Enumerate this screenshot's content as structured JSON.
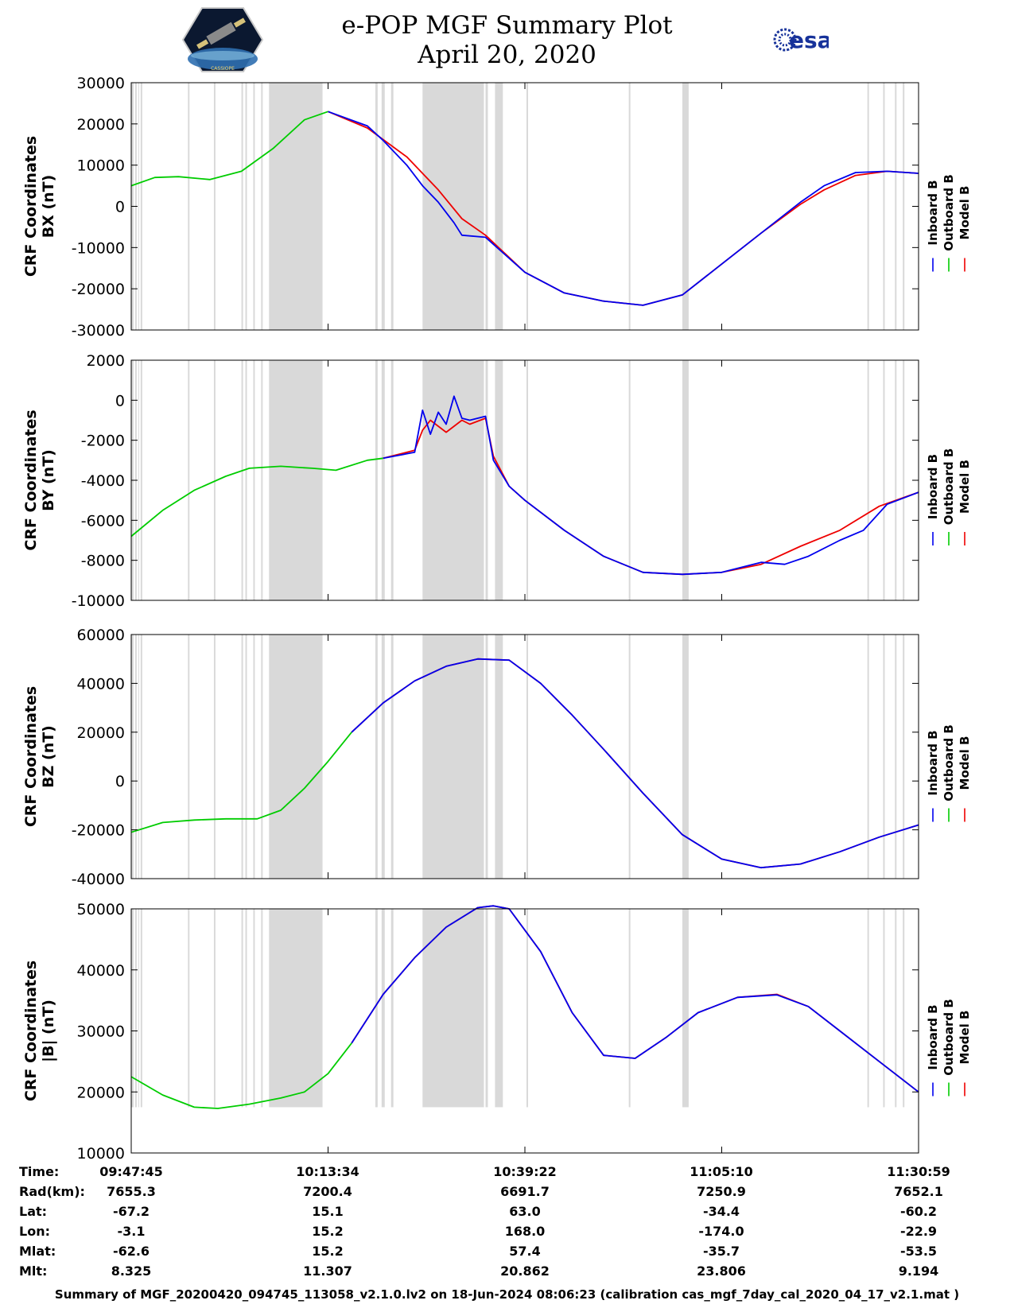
{
  "header": {
    "title_line1": "e-POP MGF Summary Plot",
    "title_line2": "April 20, 2020",
    "logo_right_text": "esa",
    "logo_left_text": "CASSIOPE"
  },
  "colors": {
    "inboard": "#0000ee",
    "outboard": "#00cc00",
    "model": "#ee0000",
    "gap_shade": "#d9d9d9"
  },
  "chart_data": [
    {
      "type": "line",
      "ylabel": [
        "CRF Coordinates",
        "BX (nT)"
      ],
      "ylim": [
        -30000,
        30000
      ],
      "yticks": [
        30000,
        20000,
        10000,
        0,
        -10000,
        -20000,
        -30000
      ],
      "ytick_labels": [
        "30000",
        "20000",
        "10000",
        "0",
        "-10000",
        "-20000",
        "-30000"
      ],
      "legend": [
        "Inboard B",
        "Outboard B",
        "Model B"
      ],
      "series": [
        {
          "name": "Outboard B",
          "color": "#00cc00",
          "x": [
            0,
            0.03,
            0.06,
            0.1,
            0.14,
            0.18,
            0.22,
            0.25
          ],
          "values": [
            5000,
            7000,
            7200,
            6500,
            8500,
            14000,
            21000,
            23000
          ]
        },
        {
          "name": "Model B",
          "color": "#ee0000",
          "x": [
            0.25,
            0.3,
            0.35,
            0.39,
            0.42,
            0.45,
            0.5,
            0.55,
            0.6,
            0.65,
            0.7,
            0.75,
            0.8,
            0.85,
            0.88,
            0.92,
            0.96,
            1.0
          ],
          "values": [
            23000,
            19000,
            12000,
            4000,
            -3000,
            -7000,
            -16000,
            -21000,
            -23000,
            -24000,
            -21500,
            -14000,
            -6500,
            500,
            4000,
            7500,
            8500,
            8000
          ]
        },
        {
          "name": "Inboard B",
          "color": "#0000ee",
          "x": [
            0.25,
            0.3,
            0.32,
            0.35,
            0.37,
            0.39,
            0.41,
            0.42,
            0.45,
            0.5,
            0.55,
            0.6,
            0.65,
            0.7,
            0.75,
            0.8,
            0.85,
            0.88,
            0.92,
            0.96,
            1.0
          ],
          "values": [
            23000,
            19500,
            16000,
            10000,
            5000,
            1000,
            -4000,
            -7000,
            -7500,
            -16000,
            -21000,
            -23000,
            -24000,
            -21500,
            -14000,
            -6500,
            1000,
            5000,
            8200,
            8500,
            8000
          ]
        }
      ]
    },
    {
      "type": "line",
      "ylabel": [
        "CRF Coordinates",
        "BY (nT)"
      ],
      "ylim": [
        -10000,
        2000
      ],
      "yticks": [
        2000,
        0,
        -2000,
        -4000,
        -6000,
        -8000,
        -10000
      ],
      "ytick_labels": [
        "2000",
        "0",
        "-2000",
        "-4000",
        "-6000",
        "-8000",
        "-10000"
      ],
      "legend": [
        "Inboard B",
        "Outboard B",
        "Model B"
      ],
      "series": [
        {
          "name": "Outboard B",
          "color": "#00cc00",
          "x": [
            0,
            0.04,
            0.08,
            0.12,
            0.15,
            0.19,
            0.23,
            0.26,
            0.3,
            0.32
          ],
          "values": [
            -6800,
            -5500,
            -4500,
            -3800,
            -3400,
            -3300,
            -3400,
            -3500,
            -3000,
            -2900
          ]
        },
        {
          "name": "Model B",
          "color": "#ee0000",
          "x": [
            0.32,
            0.36,
            0.37,
            0.38,
            0.4,
            0.42,
            0.43,
            0.45,
            0.46,
            0.48,
            0.5,
            0.55,
            0.6,
            0.65,
            0.7,
            0.75,
            0.8,
            0.85,
            0.9,
            0.95,
            1.0
          ],
          "values": [
            -2900,
            -2500,
            -1500,
            -1000,
            -1600,
            -1000,
            -1200,
            -900,
            -2800,
            -4300,
            -5000,
            -6500,
            -7800,
            -8600,
            -8700,
            -8600,
            -8200,
            -7300,
            -6500,
            -5300,
            -4600
          ]
        },
        {
          "name": "Inboard B",
          "color": "#0000ee",
          "x": [
            0.32,
            0.36,
            0.37,
            0.38,
            0.39,
            0.4,
            0.41,
            0.42,
            0.43,
            0.45,
            0.46,
            0.48,
            0.5,
            0.55,
            0.6,
            0.65,
            0.7,
            0.75,
            0.8,
            0.83,
            0.86,
            0.9,
            0.93,
            0.96,
            1.0
          ],
          "values": [
            -2900,
            -2600,
            -500,
            -1700,
            -600,
            -1200,
            200,
            -900,
            -1000,
            -800,
            -3000,
            -4300,
            -5000,
            -6500,
            -7800,
            -8600,
            -8700,
            -8600,
            -8100,
            -8200,
            -7800,
            -7000,
            -6500,
            -5200,
            -4600
          ]
        }
      ]
    },
    {
      "type": "line",
      "ylabel": [
        "CRF Coordinates",
        "BZ (nT)"
      ],
      "ylim": [
        -40000,
        60000
      ],
      "yticks": [
        60000,
        40000,
        20000,
        0,
        -20000,
        -40000
      ],
      "ytick_labels": [
        "60000",
        "40000",
        "20000",
        "0",
        "-20000",
        "-40000"
      ],
      "legend": [
        "Inboard B",
        "Outboard B",
        "Model B"
      ],
      "series": [
        {
          "name": "Outboard B",
          "color": "#00cc00",
          "x": [
            0,
            0.04,
            0.08,
            0.12,
            0.16,
            0.19,
            0.22,
            0.25,
            0.28
          ],
          "values": [
            -21000,
            -17000,
            -16000,
            -15500,
            -15500,
            -12000,
            -3000,
            8000,
            20000
          ]
        },
        {
          "name": "Model B",
          "color": "#ee0000",
          "x": [
            0.28,
            0.32,
            0.36,
            0.4,
            0.44,
            0.48,
            0.52,
            0.56,
            0.6,
            0.65,
            0.7,
            0.75,
            0.8,
            0.85,
            0.9,
            0.95,
            1.0
          ],
          "values": [
            20000,
            32000,
            41000,
            47000,
            50000,
            49500,
            40000,
            27000,
            13000,
            -5000,
            -22000,
            -32000,
            -35500,
            -34000,
            -29000,
            -23000,
            -18000
          ]
        },
        {
          "name": "Inboard B",
          "color": "#0000ee",
          "x": [
            0.28,
            0.32,
            0.36,
            0.4,
            0.44,
            0.48,
            0.52,
            0.56,
            0.6,
            0.65,
            0.7,
            0.75,
            0.8,
            0.85,
            0.9,
            0.95,
            1.0
          ],
          "values": [
            20000,
            32000,
            41000,
            47000,
            50000,
            49500,
            40000,
            27000,
            13000,
            -5000,
            -22000,
            -32000,
            -35500,
            -34000,
            -29000,
            -23000,
            -18000
          ]
        }
      ]
    },
    {
      "type": "line",
      "ylabel": [
        "CRF Coordinates",
        "|B| (nT)"
      ],
      "ylim": [
        10000,
        50000
      ],
      "yticks": [
        50000,
        40000,
        30000,
        20000,
        10000
      ],
      "ytick_labels": [
        "50000",
        "40000",
        "30000",
        "20000",
        "10000"
      ],
      "legend": [
        "Inboard B",
        "Outboard B",
        "Model B"
      ],
      "series": [
        {
          "name": "Outboard B",
          "color": "#00cc00",
          "x": [
            0,
            0.04,
            0.08,
            0.11,
            0.15,
            0.19,
            0.22,
            0.25,
            0.28
          ],
          "values": [
            22500,
            19500,
            17500,
            17300,
            18000,
            19000,
            20000,
            23000,
            28000
          ]
        },
        {
          "name": "Model B",
          "color": "#ee0000",
          "x": [
            0.28,
            0.32,
            0.36,
            0.4,
            0.44,
            0.46,
            0.48,
            0.52,
            0.56,
            0.6,
            0.64,
            0.68,
            0.72,
            0.77,
            0.82,
            0.86,
            0.9,
            0.95,
            1.0
          ],
          "values": [
            28000,
            36000,
            42000,
            47000,
            50200,
            50500,
            50000,
            43000,
            33000,
            26000,
            25500,
            29000,
            33000,
            35500,
            36000,
            34000,
            30000,
            25000,
            20000
          ]
        },
        {
          "name": "Inboard B",
          "color": "#0000ee",
          "x": [
            0.28,
            0.32,
            0.36,
            0.4,
            0.44,
            0.46,
            0.48,
            0.52,
            0.56,
            0.6,
            0.64,
            0.68,
            0.72,
            0.77,
            0.82,
            0.86,
            0.9,
            0.95,
            1.0
          ],
          "values": [
            28000,
            36000,
            42000,
            47000,
            50200,
            50500,
            50000,
            43000,
            33000,
            26000,
            25500,
            29000,
            33000,
            35500,
            35900,
            34000,
            30000,
            25000,
            20000
          ]
        }
      ]
    }
  ],
  "gap_regions": [
    [
      0.0,
      0.003
    ],
    [
      0.005,
      0.007
    ],
    [
      0.009,
      0.01
    ],
    [
      0.012,
      0.014
    ],
    [
      0.072,
      0.074
    ],
    [
      0.105,
      0.107
    ],
    [
      0.14,
      0.142
    ],
    [
      0.145,
      0.147
    ],
    [
      0.155,
      0.157
    ],
    [
      0.165,
      0.167
    ],
    [
      0.175,
      0.243
    ],
    [
      0.31,
      0.313
    ],
    [
      0.318,
      0.322
    ],
    [
      0.33,
      0.333
    ],
    [
      0.37,
      0.448
    ],
    [
      0.45,
      0.453
    ],
    [
      0.462,
      0.472
    ],
    [
      0.502,
      0.504
    ],
    [
      0.632,
      0.634
    ],
    [
      0.7,
      0.708
    ],
    [
      0.935,
      0.937
    ],
    [
      0.955,
      0.957
    ],
    [
      0.97,
      0.972
    ],
    [
      0.98,
      0.982
    ]
  ],
  "time_axis": {
    "rows": [
      {
        "label": "Time:",
        "values": [
          "09:47:45",
          "10:13:34",
          "10:39:22",
          "11:05:10",
          "11:30:59"
        ]
      },
      {
        "label": "Rad(km):",
        "values": [
          "7655.3",
          "7200.4",
          "6691.7",
          "7250.9",
          "7652.1"
        ]
      },
      {
        "label": "Lat:",
        "values": [
          "-67.2",
          "15.1",
          "63.0",
          "-34.4",
          "-60.2"
        ]
      },
      {
        "label": "Lon:",
        "values": [
          "-3.1",
          "15.2",
          "168.0",
          "-174.0",
          "-22.9"
        ]
      },
      {
        "label": "Mlat:",
        "values": [
          "-62.6",
          "15.2",
          "57.4",
          "-35.7",
          "-53.5"
        ]
      },
      {
        "label": "Mlt:",
        "values": [
          "8.325",
          "11.307",
          "20.862",
          "23.806",
          "9.194"
        ]
      }
    ]
  },
  "footer": "Summary of MGF_20200420_094745_113058_v2.1.0.lv2 on 18-Jun-2024 08:06:23 (calibration cas_mgf_7day_cal_2020_04_17_v2.1.mat )"
}
